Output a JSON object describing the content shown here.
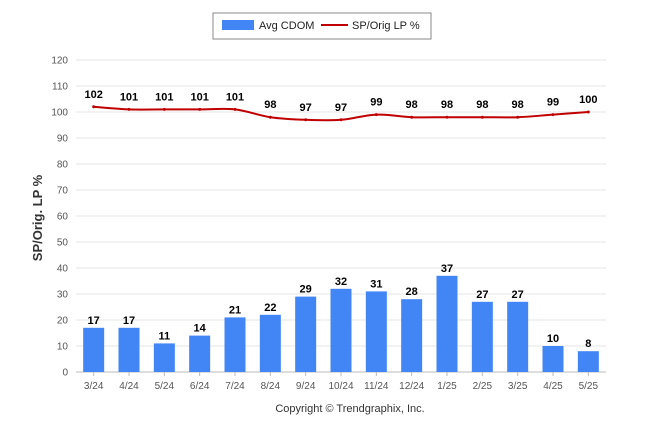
{
  "chart_data": {
    "type": "bar",
    "categories": [
      "3/24",
      "4/24",
      "5/24",
      "6/24",
      "7/24",
      "8/24",
      "9/24",
      "10/24",
      "11/24",
      "12/24",
      "1/25",
      "2/25",
      "3/25",
      "4/25",
      "5/25"
    ],
    "series": [
      {
        "name": "Avg CDOM",
        "kind": "bar",
        "color": "#4285f4",
        "values": [
          17,
          17,
          11,
          14,
          21,
          22,
          29,
          32,
          31,
          28,
          37,
          27,
          27,
          10,
          8
        ]
      },
      {
        "name": "SP/Orig LP %",
        "kind": "line",
        "color": "#c00000",
        "values": [
          102,
          101,
          101,
          101,
          101,
          98,
          97,
          97,
          99,
          98,
          98,
          98,
          98,
          99,
          100
        ]
      }
    ],
    "ylabel": "SP/Orig. LP %",
    "ylim": [
      0,
      120
    ],
    "yticks": [
      0,
      10,
      20,
      30,
      40,
      50,
      60,
      70,
      80,
      90,
      100,
      110,
      120
    ],
    "grid": true,
    "legend": "top-center"
  },
  "footer": "Copyright © Trendgraphix, Inc."
}
